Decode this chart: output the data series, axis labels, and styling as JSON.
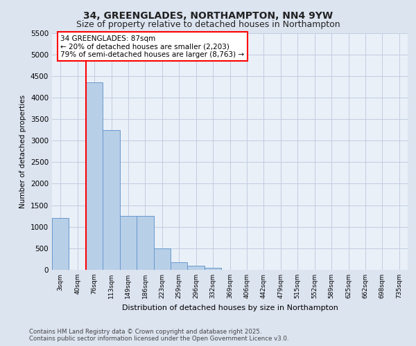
{
  "title1": "34, GREENGLADES, NORTHAMPTON, NN4 9YW",
  "title2": "Size of property relative to detached houses in Northampton",
  "xlabel": "Distribution of detached houses by size in Northampton",
  "ylabel": "Number of detached properties",
  "footer1": "Contains HM Land Registry data © Crown copyright and database right 2025.",
  "footer2": "Contains public sector information licensed under the Open Government Licence v3.0.",
  "annotation_line1": "34 GREENGLADES: 87sqm",
  "annotation_line2": "← 20% of detached houses are smaller (2,203)",
  "annotation_line3": "79% of semi-detached houses are larger (8,763) →",
  "bar_categories": [
    "3sqm",
    "40sqm",
    "76sqm",
    "113sqm",
    "149sqm",
    "186sqm",
    "223sqm",
    "259sqm",
    "296sqm",
    "332sqm",
    "369sqm",
    "406sqm",
    "442sqm",
    "479sqm",
    "515sqm",
    "552sqm",
    "589sqm",
    "625sqm",
    "662sqm",
    "698sqm",
    "735sqm"
  ],
  "bar_values": [
    1200,
    0,
    4350,
    3250,
    1250,
    1250,
    500,
    175,
    100,
    50,
    0,
    0,
    0,
    0,
    0,
    0,
    0,
    0,
    0,
    0,
    0
  ],
  "bar_color": "#b8cfe8",
  "bar_edge_color": "#6699cc",
  "red_line_x": 2.0,
  "ylim": [
    0,
    5500
  ],
  "yticks": [
    0,
    500,
    1000,
    1500,
    2000,
    2500,
    3000,
    3500,
    4000,
    4500,
    5000,
    5500
  ],
  "bg_color": "#dce4f0",
  "plot_bg_color": "#eaf0f8",
  "grid_color": "#c0cce0",
  "title_fontsize": 10,
  "subtitle_fontsize": 9
}
